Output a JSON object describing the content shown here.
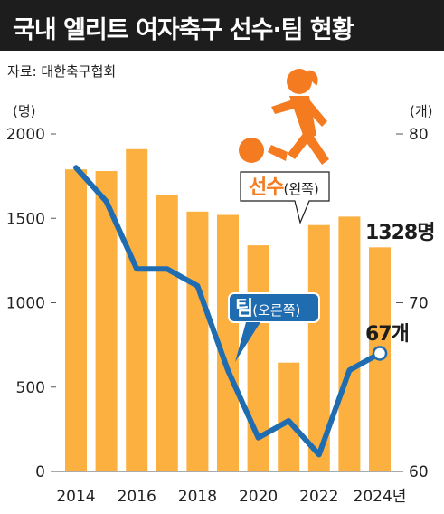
{
  "header": {
    "title": "국내 엘리트 여자축구 선수·팀 현황",
    "source": "자료: 대한축구협회"
  },
  "chart_data": {
    "type": "bar+line",
    "categories": [
      "2014",
      "2015",
      "2016",
      "2017",
      "2018",
      "2019",
      "2020",
      "2021",
      "2022",
      "2023",
      "2024"
    ],
    "x_tick_labels": [
      "2014",
      "2016",
      "2018",
      "2020",
      "2022",
      "2024년"
    ],
    "series": [
      {
        "name": "선수",
        "name_suffix": "(왼쪽)",
        "type": "bar",
        "axis": "left",
        "values": [
          1790,
          1780,
          1910,
          1640,
          1540,
          1520,
          1340,
          645,
          1460,
          1510,
          1328
        ],
        "end_label": "1328명"
      },
      {
        "name": "팀",
        "name_suffix": "(오른쪽)",
        "type": "line",
        "axis": "right",
        "values": [
          78,
          76,
          72,
          72,
          71,
          66,
          62,
          63,
          61,
          66,
          67
        ],
        "end_label": "67개"
      }
    ],
    "y_left": {
      "unit": "(명)",
      "ticks": [
        "0",
        "500",
        "1000",
        "1500",
        "2000"
      ],
      "range": [
        0,
        2000
      ]
    },
    "y_right": {
      "unit": "(개)",
      "ticks": [
        "60",
        "70",
        "80"
      ],
      "range": [
        60,
        80
      ]
    },
    "colors": {
      "bar": "#fbb040",
      "line": "#1f6cb0",
      "player_label": "#f47b20",
      "team_badge": "#1f6cb0",
      "title_bg": "#1d1d1d"
    },
    "grid": false
  }
}
